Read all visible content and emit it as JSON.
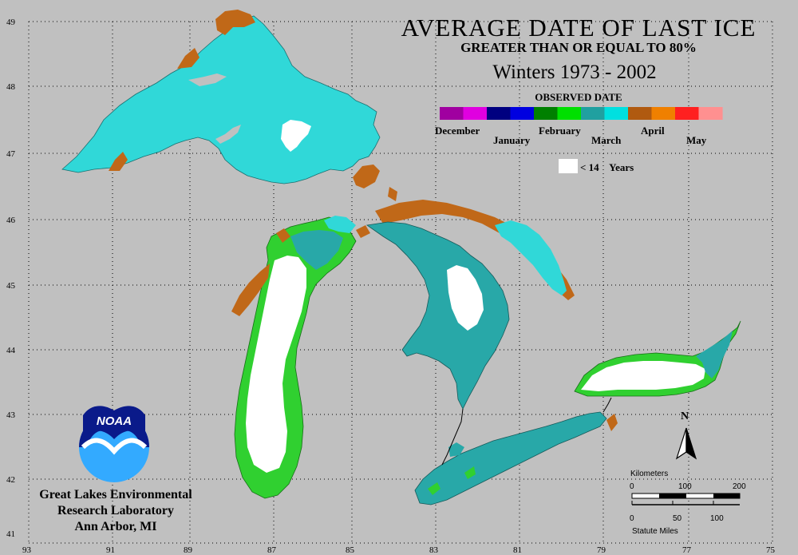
{
  "title": {
    "main": "AVERAGE DATE OF LAST ICE",
    "sub": "GREATER THAN OR EQUAL TO 80%",
    "winters": "Winters 1973 - 2002"
  },
  "legend": {
    "header": "OBSERVED DATE",
    "colors": [
      "#a000a0",
      "#e000e0",
      "#000080",
      "#0000e0",
      "#008000",
      "#00e000",
      "#20a0a0",
      "#00e0e0",
      "#b05a10",
      "#f08000",
      "#ff2020",
      "#ff9090"
    ],
    "months": [
      "December",
      "January",
      "February",
      "March",
      "April",
      "May"
    ],
    "white_box_label": "< 14    Years"
  },
  "axes": {
    "latitudes": [
      "49",
      "48",
      "47",
      "46",
      "45",
      "44",
      "43",
      "42",
      "41"
    ],
    "longitudes": [
      "93",
      "91",
      "89",
      "87",
      "85",
      "83",
      "81",
      "79",
      "77",
      "75"
    ]
  },
  "credit": {
    "line1": "Great Lakes Environmental",
    "line2": "Research Laboratory",
    "line3": "Ann Arbor, MI"
  },
  "logo": {
    "text": "NOAA"
  },
  "north": "N",
  "scale": {
    "km_label": "Kilometers",
    "km_ticks": [
      "0",
      "100",
      "200"
    ],
    "mi_ticks": [
      "0",
      "50",
      "100"
    ],
    "mi_label": "Statute Miles"
  },
  "palette": {
    "background": "#c0c0c0",
    "cyan": "#30d8d8",
    "teal": "#28a8a8",
    "green": "#30d030",
    "white": "#ffffff",
    "brown": "#b06020"
  }
}
